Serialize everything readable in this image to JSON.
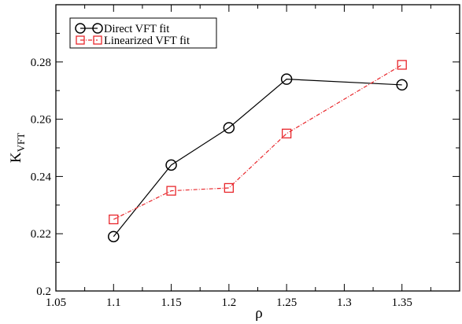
{
  "chart_data": {
    "type": "line",
    "xlabel": "ρ",
    "ylabel": "K",
    "ylabel_subscript": "VFT",
    "xlim": [
      1.05,
      1.4
    ],
    "ylim": [
      0.2,
      0.3
    ],
    "x_ticks": [
      1.05,
      1.1,
      1.15,
      1.2,
      1.25,
      1.3,
      1.35
    ],
    "x_tick_labels": [
      "1.05",
      "1.1",
      "1.15",
      "1.2",
      "1.25",
      "1.3",
      "1.35"
    ],
    "y_ticks": [
      0.2,
      0.22,
      0.24,
      0.26,
      0.28
    ],
    "y_tick_labels": [
      "0.2",
      "0.22",
      "0.24",
      "0.26",
      "0.28"
    ],
    "grid": false,
    "legend_position": "top-left",
    "series": [
      {
        "name": "Direct VFT fit",
        "color": "#000000",
        "marker": "circle",
        "line_style": "solid",
        "x": [
          1.1,
          1.15,
          1.2,
          1.25,
          1.35
        ],
        "y": [
          0.219,
          0.244,
          0.257,
          0.274,
          0.272
        ]
      },
      {
        "name": "Linearized VFT fit",
        "color": "#e8262b",
        "marker": "square",
        "line_style": "dash-dot",
        "x": [
          1.1,
          1.15,
          1.2,
          1.25,
          1.35
        ],
        "y": [
          0.225,
          0.235,
          0.236,
          0.255,
          0.279
        ]
      }
    ]
  }
}
